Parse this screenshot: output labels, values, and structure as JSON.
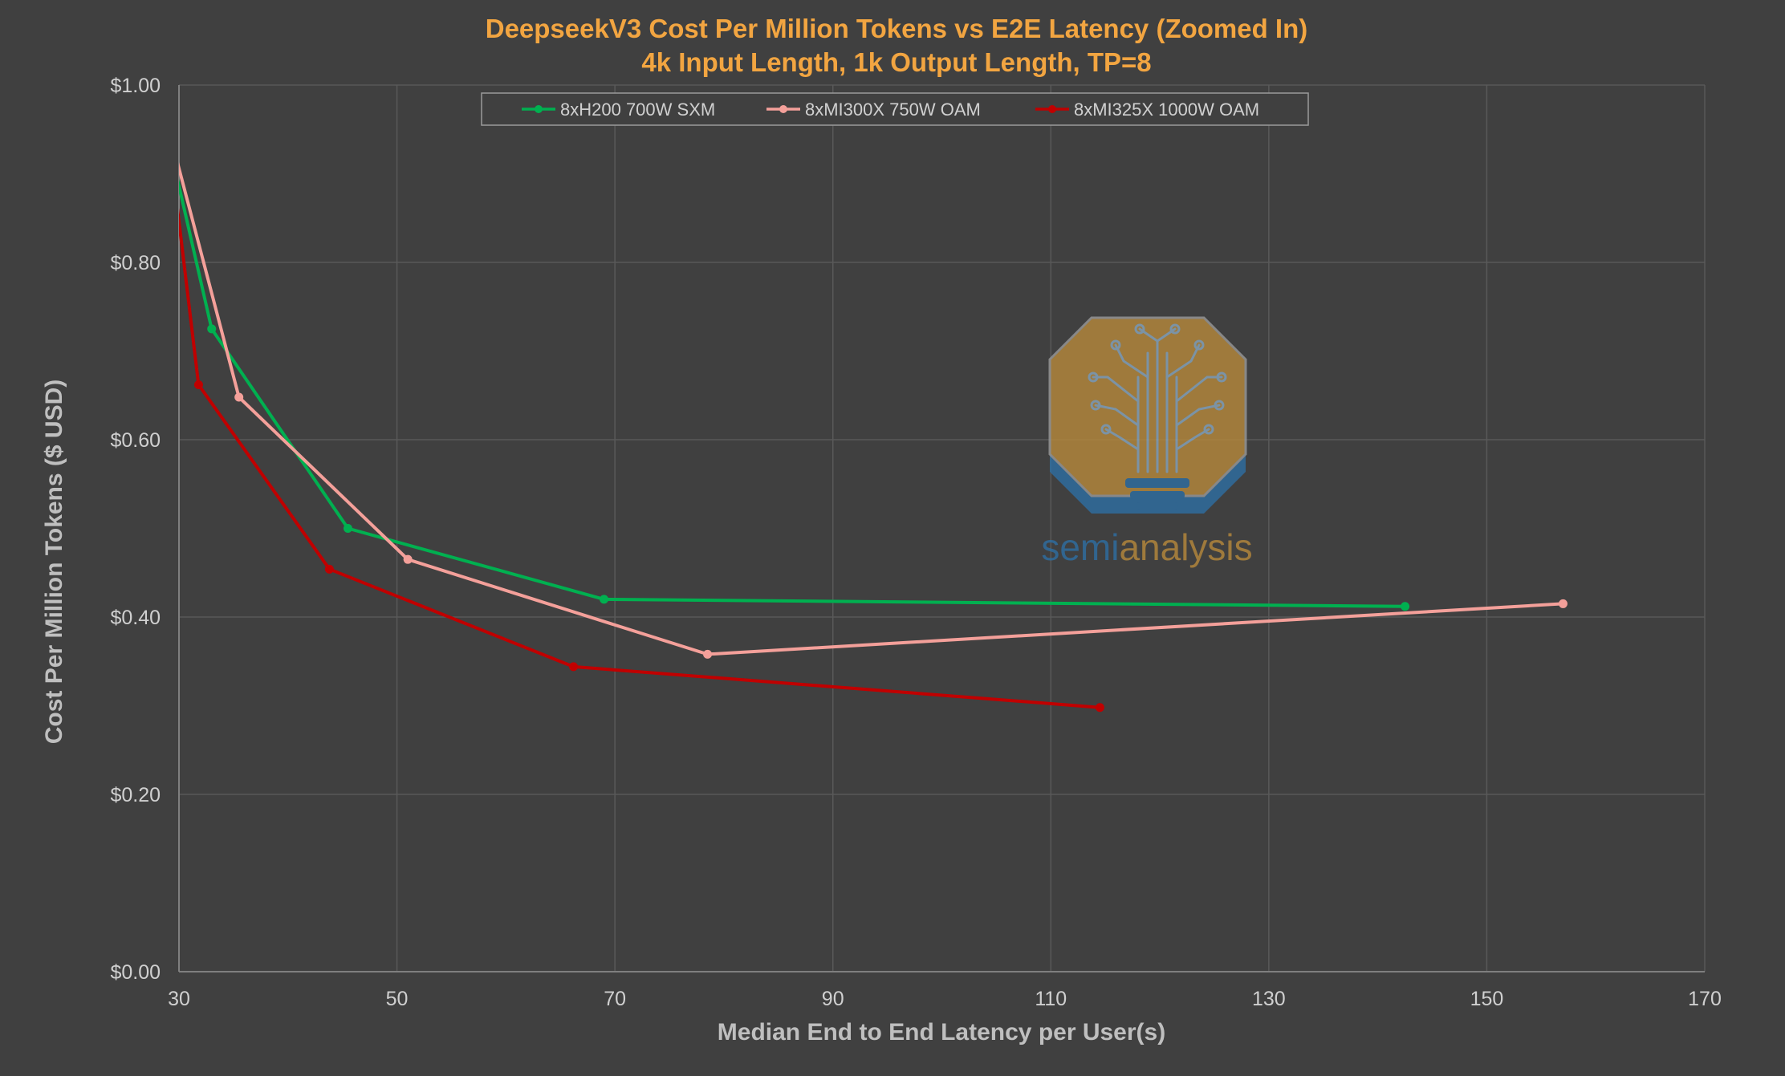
{
  "colors": {
    "background": "#404040",
    "gridline": "#595959",
    "axis_line": "#7F7F7F",
    "title": "#F2A541",
    "tick_label": "#D0D0D0",
    "axis_title": "#BFBFBF",
    "watermark_gold": "#B7893C",
    "watermark_blue": "#2E6FA3"
  },
  "watermark": {
    "icon": "semianalysis-tree-octagon-logo",
    "part1": "semi",
    "part2": "analysis"
  },
  "chart_data": {
    "type": "line",
    "title": "DeepseekV3 Cost Per Million Tokens vs E2E Latency (Zoomed In)",
    "subtitle": "4k Input Length, 1k Output Length, TP=8",
    "xlabel": "Median End to End Latency per User(s)",
    "ylabel": "Cost Per Million Tokens ($ USD)",
    "xlim": [
      30,
      170
    ],
    "ylim": [
      0,
      1.0
    ],
    "x_ticks": [
      30,
      50,
      70,
      90,
      110,
      130,
      150,
      170
    ],
    "y_ticks": [
      0,
      0.2,
      0.4,
      0.6,
      0.8,
      1.0
    ],
    "x_tick_labels": [
      "30",
      "50",
      "70",
      "90",
      "110",
      "130",
      "150",
      "170"
    ],
    "y_tick_labels": [
      "$0.00",
      "$0.20",
      "$0.40",
      "$0.60",
      "$0.80",
      "$1.00"
    ],
    "grid": true,
    "legend_position": "top-center",
    "series": [
      {
        "name": "8xH200 700W SXM",
        "color": "#00B050",
        "points": [
          [
            29,
            0.94
          ],
          [
            33,
            0.725
          ],
          [
            45.5,
            0.5
          ],
          [
            69,
            0.42
          ],
          [
            142.5,
            0.412
          ]
        ]
      },
      {
        "name": "8xMI300X 750W OAM",
        "color": "#F4A09A",
        "points": [
          [
            28,
            1.0
          ],
          [
            35.5,
            0.648
          ],
          [
            51,
            0.465
          ],
          [
            78.5,
            0.358
          ],
          [
            157,
            0.415
          ]
        ]
      },
      {
        "name": "8xMI325X 1000W OAM",
        "color": "#C00000",
        "points": [
          [
            28.5,
            1.0
          ],
          [
            31.8,
            0.662
          ],
          [
            43.8,
            0.454
          ],
          [
            66.2,
            0.344
          ],
          [
            114.5,
            0.298
          ]
        ]
      }
    ]
  }
}
